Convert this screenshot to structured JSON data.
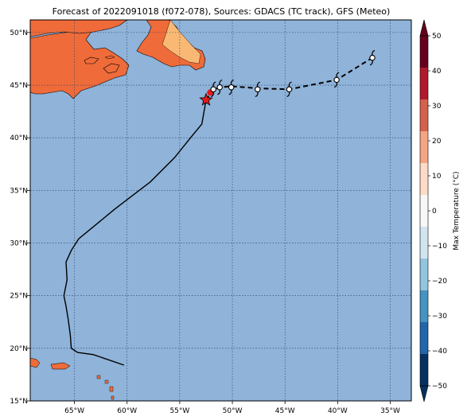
{
  "title": "Forecast of 2022091018 (f072-078), Sources: GDACS (TC track), GFS (Meteo)",
  "map": {
    "lat_labels": [
      {
        "value": 50,
        "label": "50°N"
      },
      {
        "value": 45,
        "label": "45°N"
      },
      {
        "value": 40,
        "label": "40°N"
      },
      {
        "value": 35,
        "label": "35°N"
      },
      {
        "value": 30,
        "label": "30°N"
      },
      {
        "value": 25,
        "label": "25°N"
      },
      {
        "value": 20,
        "label": "20°N"
      },
      {
        "value": 15,
        "label": "15°N"
      }
    ],
    "lon_labels": [
      {
        "value": -65,
        "label": "65°W"
      },
      {
        "value": -60,
        "label": "60°W"
      },
      {
        "value": -55,
        "label": "55°W"
      },
      {
        "value": -50,
        "label": "50°W"
      },
      {
        "value": -45,
        "label": "45°W"
      },
      {
        "value": -40,
        "label": "40°W"
      },
      {
        "value": -35,
        "label": "35°W"
      }
    ],
    "extent": {
      "lon_min": -69.2,
      "lon_max": -33.0,
      "lat_min": 15.0,
      "lat_max": 51.2
    },
    "ocean_color": "#8fb3d9"
  },
  "colorbar": {
    "label": "Max Temperature (°C)",
    "ticks": [
      "50",
      "40",
      "30",
      "20",
      "10",
      "0",
      "−10",
      "−20",
      "−30",
      "−40",
      "−50"
    ],
    "colors": [
      "#67001f",
      "#b2182b",
      "#d6604d",
      "#f4a582",
      "#fddbc7",
      "#f7f7f7",
      "#d1e5f0",
      "#92c5de",
      "#4393c3",
      "#2166ac",
      "#053061"
    ]
  },
  "track": {
    "past": [
      [
        -60.3,
        18.4
      ],
      [
        -63.2,
        19.4
      ],
      [
        -64.7,
        19.6
      ],
      [
        -65.3,
        20.0
      ],
      [
        -65.4,
        21.3
      ],
      [
        -65.6,
        22.8
      ],
      [
        -65.8,
        24.0
      ],
      [
        -66.0,
        25.0
      ],
      [
        -65.7,
        26.5
      ],
      [
        -65.8,
        28.2
      ],
      [
        -65.3,
        29.3
      ],
      [
        -64.6,
        30.4
      ],
      [
        -63.5,
        31.3
      ],
      [
        -61.2,
        33.2
      ],
      [
        -59.9,
        34.2
      ],
      [
        -57.8,
        35.8
      ],
      [
        -55.5,
        38.1
      ],
      [
        -53.9,
        40.1
      ],
      [
        -52.9,
        41.3
      ],
      [
        -52.5,
        43.6
      ]
    ],
    "forecast": [
      [
        -52.5,
        43.6
      ],
      [
        -51.8,
        44.6
      ],
      [
        -51.1,
        44.8
      ],
      [
        -50.1,
        44.9
      ],
      [
        -47.6,
        44.7
      ],
      [
        -44.6,
        44.6
      ],
      [
        -40.1,
        45.5
      ],
      [
        -36.7,
        47.6
      ]
    ],
    "current_position": [
      -52.5,
      43.6
    ],
    "symbols": [
      [
        -51.8,
        44.6
      ],
      [
        -51.2,
        44.8
      ],
      [
        -50.1,
        44.8
      ],
      [
        -47.6,
        44.6
      ],
      [
        -44.6,
        44.6
      ],
      [
        -40.1,
        45.5
      ],
      [
        -36.7,
        47.6
      ]
    ]
  }
}
